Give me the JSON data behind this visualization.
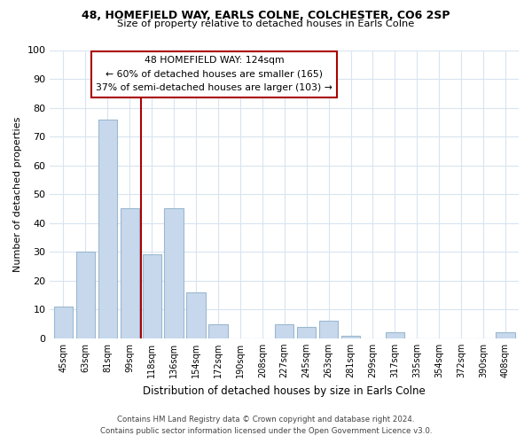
{
  "title1": "48, HOMEFIELD WAY, EARLS COLNE, COLCHESTER, CO6 2SP",
  "title2": "Size of property relative to detached houses in Earls Colne",
  "xlabel": "Distribution of detached houses by size in Earls Colne",
  "ylabel": "Number of detached properties",
  "bar_labels": [
    "45sqm",
    "63sqm",
    "81sqm",
    "99sqm",
    "118sqm",
    "136sqm",
    "154sqm",
    "172sqm",
    "190sqm",
    "208sqm",
    "227sqm",
    "245sqm",
    "263sqm",
    "281sqm",
    "299sqm",
    "317sqm",
    "335sqm",
    "354sqm",
    "372sqm",
    "390sqm",
    "408sqm"
  ],
  "bar_values": [
    11,
    30,
    76,
    45,
    29,
    45,
    16,
    5,
    0,
    0,
    5,
    4,
    6,
    1,
    0,
    2,
    0,
    0,
    0,
    0,
    2
  ],
  "bar_color": "#c8d8ec",
  "bar_edge_color": "#9ab8d0",
  "ylim": [
    0,
    100
  ],
  "yticks": [
    0,
    10,
    20,
    30,
    40,
    50,
    60,
    70,
    80,
    90,
    100
  ],
  "property_line_color": "#aa0000",
  "annotation_title": "48 HOMEFIELD WAY: 124sqm",
  "annotation_line1": "← 60% of detached houses are smaller (165)",
  "annotation_line2": "37% of semi-detached houses are larger (103) →",
  "annotation_box_facecolor": "#ffffff",
  "annotation_box_edgecolor": "#aa0000",
  "footer1": "Contains HM Land Registry data © Crown copyright and database right 2024.",
  "footer2": "Contains public sector information licensed under the Open Government Licence v3.0.",
  "background_color": "#ffffff",
  "grid_color": "#d8e4f0"
}
